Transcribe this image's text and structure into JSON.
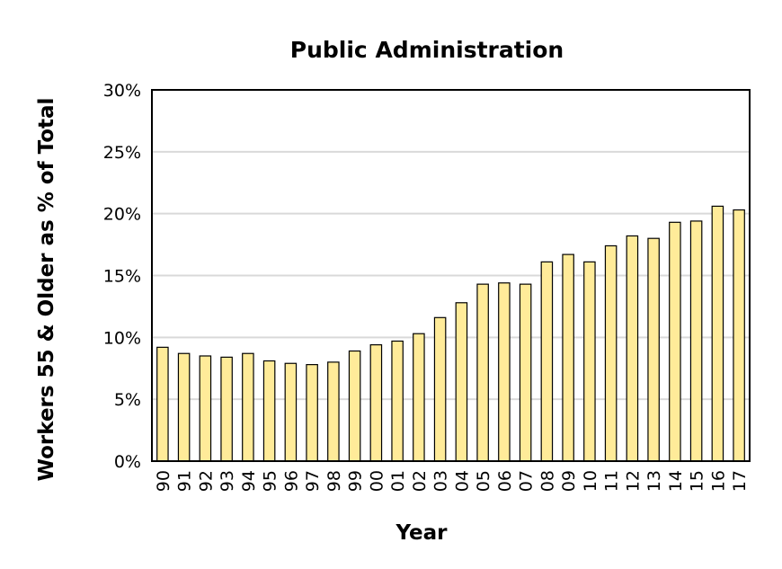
{
  "chart_data": {
    "type": "bar",
    "title": "Public Administration",
    "xlabel": "Year",
    "ylabel": "Workers 55 & Older as % of Total",
    "categories": [
      "90",
      "91",
      "92",
      "93",
      "94",
      "95",
      "96",
      "97",
      "98",
      "99",
      "00",
      "01",
      "02",
      "03",
      "04",
      "05",
      "06",
      "07",
      "08",
      "09",
      "10",
      "11",
      "12",
      "13",
      "14",
      "15",
      "16",
      "17"
    ],
    "values": [
      9.2,
      8.7,
      8.5,
      8.4,
      8.7,
      8.1,
      7.9,
      7.8,
      8.0,
      8.9,
      9.4,
      9.7,
      10.3,
      11.6,
      12.8,
      14.3,
      14.4,
      14.3,
      16.1,
      16.7,
      16.1,
      17.4,
      18.2,
      18.0,
      19.3,
      19.4,
      20.6,
      20.3
    ],
    "ylim": [
      0,
      30
    ],
    "yticks": [
      0,
      5,
      10,
      15,
      20,
      25,
      30
    ],
    "ytick_labels": [
      "0%",
      "5%",
      "10%",
      "15%",
      "20%",
      "25%",
      "30%"
    ],
    "grid": true,
    "bar_color": "#ffeb99",
    "bar_edge_color": "#000000",
    "grid_color": "#d9d9d9"
  }
}
